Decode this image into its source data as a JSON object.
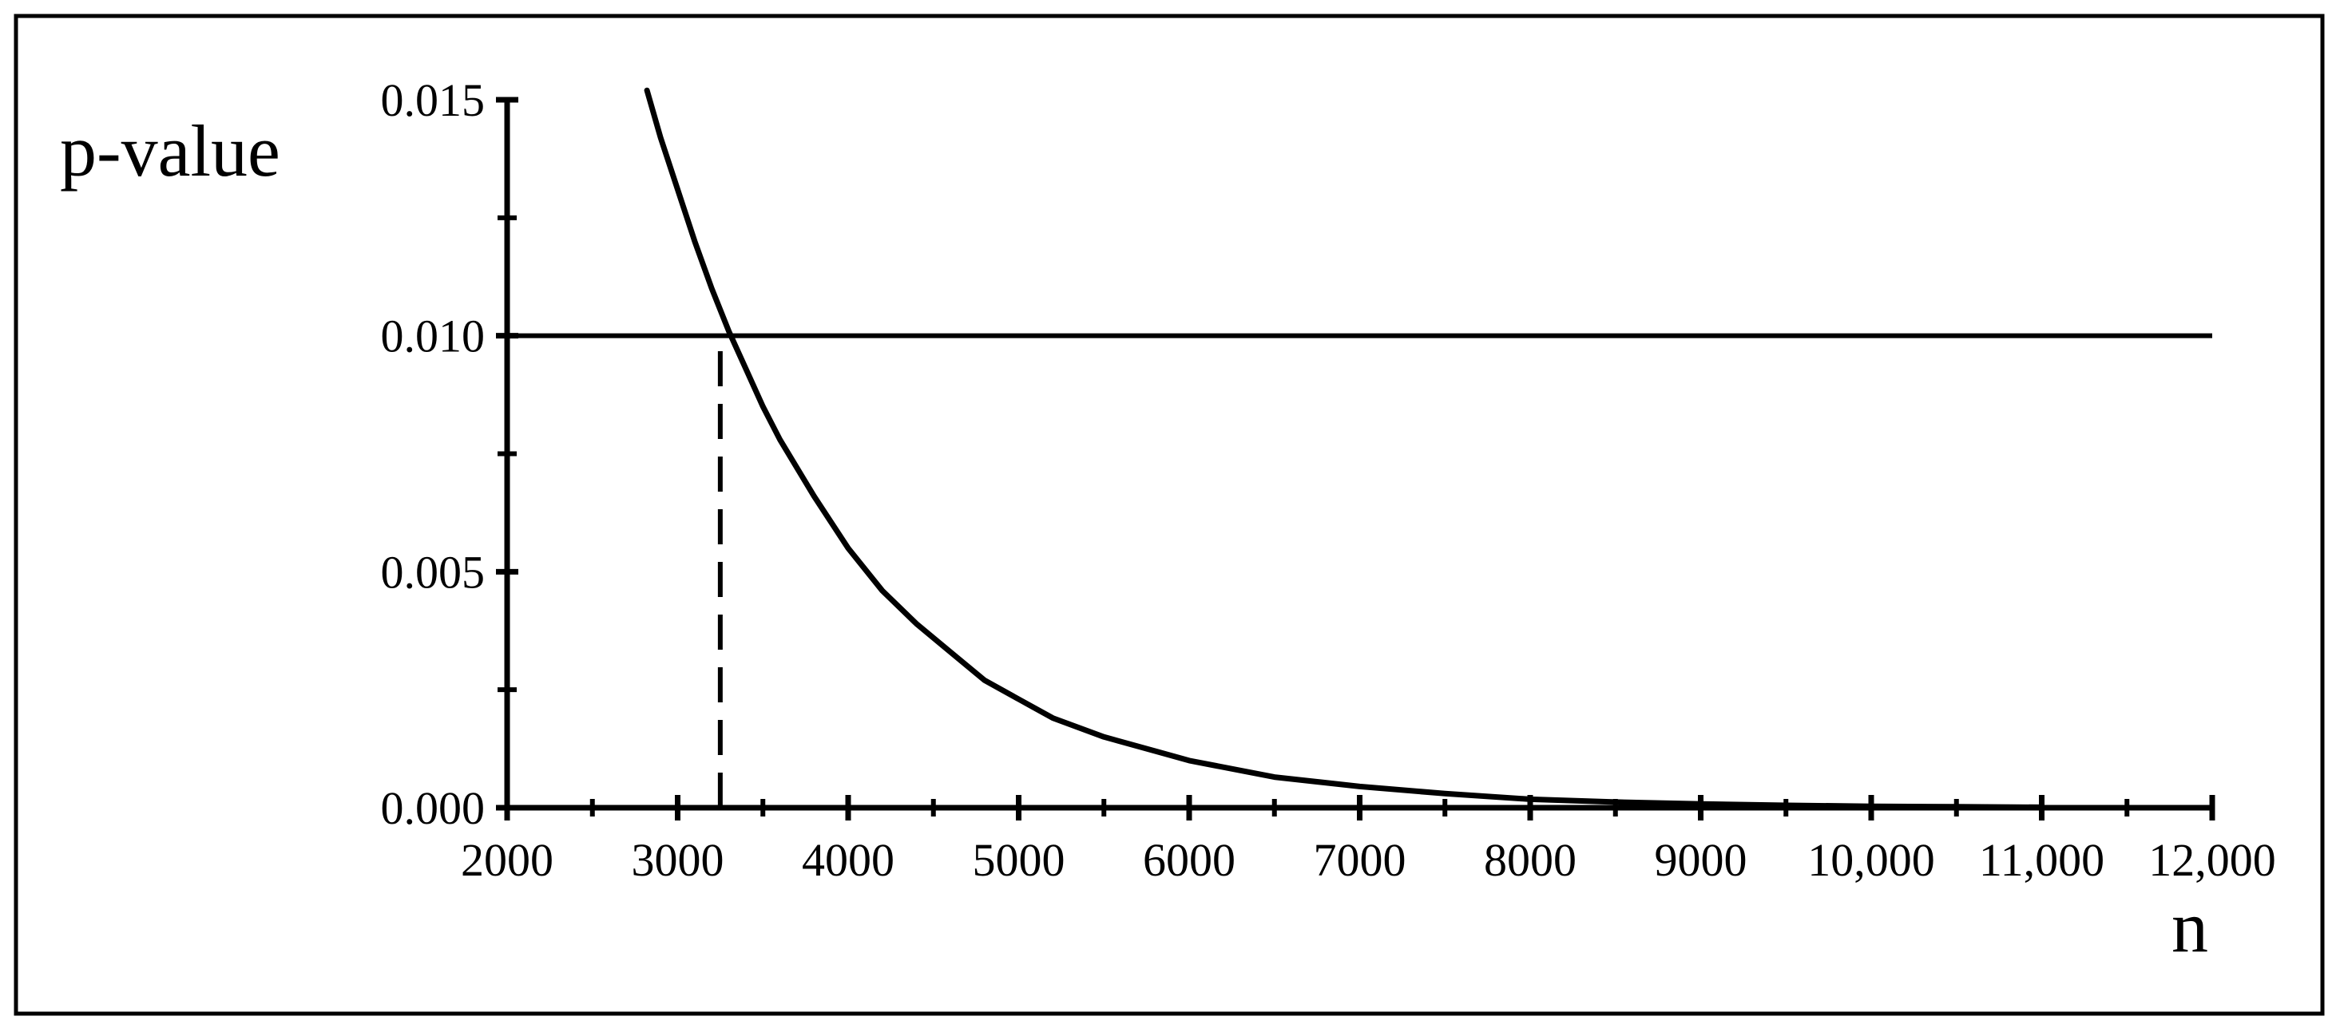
{
  "chart_data": {
    "type": "line",
    "xlabel": "n",
    "ylabel": "p-value",
    "xlim": [
      2000,
      12000
    ],
    "ylim": [
      0.0,
      0.015
    ],
    "x_tick_labels": [
      "2000",
      "3000",
      "4000",
      "5000",
      "6000",
      "7000",
      "8000",
      "9000",
      "10,000",
      "11,000",
      "12,000"
    ],
    "x_tick_values": [
      2000,
      3000,
      4000,
      5000,
      6000,
      7000,
      8000,
      9000,
      10000,
      11000,
      12000
    ],
    "x_minor_ticks": [
      2500,
      3500,
      4500,
      5500,
      6500,
      7500,
      8500,
      9500,
      10500,
      11500
    ],
    "y_tick_labels": [
      "0.000",
      "0.005",
      "0.010",
      "0.015"
    ],
    "y_tick_values": [
      0.0,
      0.005,
      0.01,
      0.015
    ],
    "y_minor_ticks": [
      0.0025,
      0.0075,
      0.0125
    ],
    "grid": false,
    "series": [
      {
        "style": "solid",
        "x": [
          2820,
          2900,
          3000,
          3100,
          3200,
          3300,
          3400,
          3500,
          3600,
          3800,
          4000,
          4200,
          4400,
          4600,
          4800,
          5000,
          5200,
          5500,
          5800,
          6000,
          6500,
          7000,
          7500,
          8000,
          8500,
          9000,
          9500,
          10000,
          10500,
          11000
        ],
        "y": [
          0.0152,
          0.0142,
          0.0131,
          0.012,
          0.011,
          0.0101,
          0.0093,
          0.0085,
          0.0078,
          0.0066,
          0.0055,
          0.0046,
          0.0039,
          0.0033,
          0.0027,
          0.0023,
          0.0019,
          0.0015,
          0.0012,
          0.001,
          0.00065,
          0.00045,
          0.0003,
          0.00018,
          0.00012,
          8e-05,
          5e-05,
          3e-05,
          2e-05,
          1e-05
        ]
      }
    ],
    "annotations": [
      {
        "type": "hline",
        "y": 0.01,
        "x_from": 2000,
        "x_to": 12000,
        "style": "solid"
      },
      {
        "type": "vline",
        "x": 3250,
        "y_from": 0.0,
        "y_to": 0.01,
        "style": "dashed"
      }
    ],
    "frame": true
  }
}
